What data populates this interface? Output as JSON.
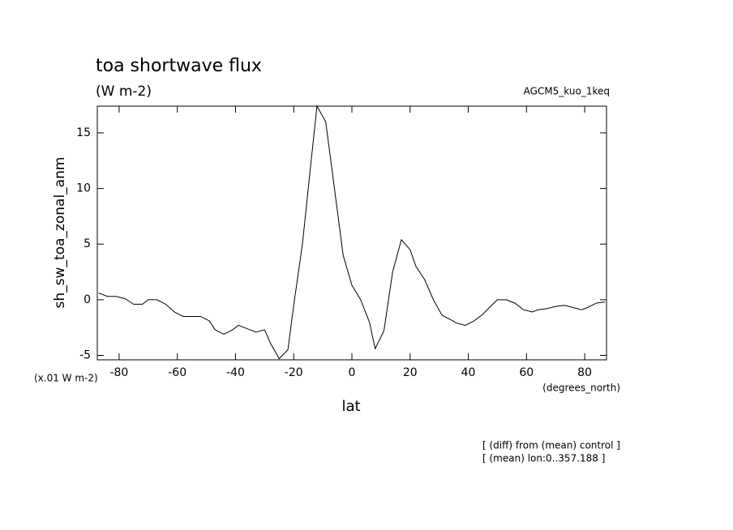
{
  "chart_data": {
    "type": "line",
    "title": "toa shortwave flux",
    "subtitle": "(W m-2)",
    "annotation": "AGCM5_kuo_1keq",
    "y_label": "sh_sw_toa_zonal_anm",
    "x_label": "lat",
    "y_units": "(x.01 W m-2)",
    "x_units": "(degrees_north)",
    "notes": [
      "[ (diff) from (mean) control ]",
      "[ (mean) lon:0..357.188 ]"
    ],
    "xlim": [
      -87.5,
      87.5
    ],
    "ylim": [
      -5.4,
      17.4
    ],
    "xticks": [
      -80,
      -60,
      -40,
      -20,
      0,
      20,
      40,
      60,
      80
    ],
    "yticks": [
      -5,
      0,
      5,
      10,
      15
    ],
    "color": "#000000",
    "x": [
      -87,
      -84,
      -81,
      -78,
      -75,
      -72,
      -70,
      -67,
      -64,
      -61,
      -58,
      -55,
      -52,
      -49,
      -47,
      -44,
      -41,
      -39,
      -36,
      -33,
      -30,
      -28,
      -25,
      -22,
      -20,
      -17,
      -14,
      -12,
      -9,
      -6,
      -3,
      0,
      3,
      6,
      8,
      11,
      14,
      17,
      20,
      22,
      25,
      28,
      31,
      34,
      36,
      39,
      42,
      45,
      48,
      50,
      53,
      56,
      59,
      62,
      64,
      67,
      70,
      73,
      76,
      79,
      81,
      84,
      87
    ],
    "values": [
      0.6,
      0.3,
      0.3,
      0.1,
      -0.4,
      -0.4,
      0.0,
      0.0,
      -0.4,
      -1.1,
      -1.5,
      -1.5,
      -1.5,
      -1.9,
      -2.7,
      -3.1,
      -2.7,
      -2.3,
      -2.6,
      -2.9,
      -2.7,
      -3.9,
      -5.3,
      -4.5,
      -0.5,
      5.0,
      12.5,
      17.4,
      16.0,
      10.0,
      4.0,
      1.3,
      0.0,
      -2.0,
      -4.4,
      -2.8,
      2.5,
      5.4,
      4.5,
      3.0,
      1.8,
      0.0,
      -1.4,
      -1.8,
      -2.1,
      -2.3,
      -1.9,
      -1.3,
      -0.5,
      0.0,
      0.0,
      -0.3,
      -0.9,
      -1.1,
      -0.9,
      -0.8,
      -0.6,
      -0.5,
      -0.7,
      -0.9,
      -0.7,
      -0.3,
      -0.2
    ]
  }
}
